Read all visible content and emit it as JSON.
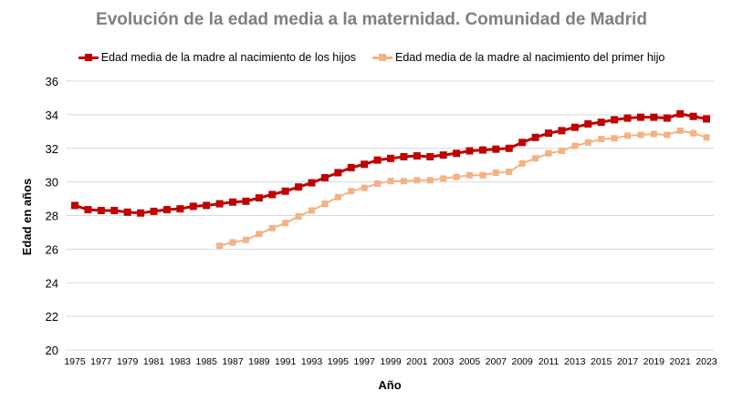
{
  "chart_data": {
    "type": "line",
    "title": "Evolución de la edad media a la maternidad. Comunidad de Madrid",
    "xlabel": "Año",
    "ylabel": "Edad en años",
    "ylim": [
      20,
      36
    ],
    "yticks": [
      20,
      22,
      24,
      26,
      28,
      30,
      32,
      34,
      36
    ],
    "xlim": [
      1975,
      2023
    ],
    "xticks": [
      1975,
      1977,
      1979,
      1981,
      1983,
      1985,
      1987,
      1989,
      1991,
      1993,
      1995,
      1997,
      1999,
      2001,
      2003,
      2005,
      2007,
      2009,
      2011,
      2013,
      2015,
      2017,
      2019,
      2021,
      2023
    ],
    "grid": true,
    "legend": "top",
    "series": [
      {
        "name": "Edad media de la madre al nacimiento de los hijos",
        "color": "#c00000",
        "x_start": 1975,
        "values": [
          28.6,
          28.35,
          28.3,
          28.3,
          28.2,
          28.15,
          28.25,
          28.35,
          28.4,
          28.55,
          28.6,
          28.7,
          28.8,
          28.85,
          29.05,
          29.25,
          29.45,
          29.7,
          29.95,
          30.25,
          30.55,
          30.85,
          31.05,
          31.3,
          31.4,
          31.5,
          31.55,
          31.5,
          31.6,
          31.7,
          31.85,
          31.9,
          31.95,
          32.0,
          32.35,
          32.65,
          32.9,
          33.05,
          33.25,
          33.45,
          33.55,
          33.7,
          33.8,
          33.85,
          33.85,
          33.8,
          34.05,
          33.9,
          33.75
        ]
      },
      {
        "name": "Edad media de la madre al nacimiento del primer hijo",
        "color": "#f4b183",
        "x_start": 1986,
        "values": [
          26.2,
          26.4,
          26.55,
          26.9,
          27.25,
          27.55,
          27.95,
          28.3,
          28.7,
          29.1,
          29.45,
          29.65,
          29.9,
          30.05,
          30.05,
          30.1,
          30.1,
          30.2,
          30.3,
          30.4,
          30.4,
          30.55,
          30.6,
          31.1,
          31.4,
          31.7,
          31.85,
          32.15,
          32.35,
          32.55,
          32.6,
          32.75,
          32.8,
          32.85,
          32.8,
          33.05,
          32.9,
          32.65
        ]
      }
    ]
  }
}
